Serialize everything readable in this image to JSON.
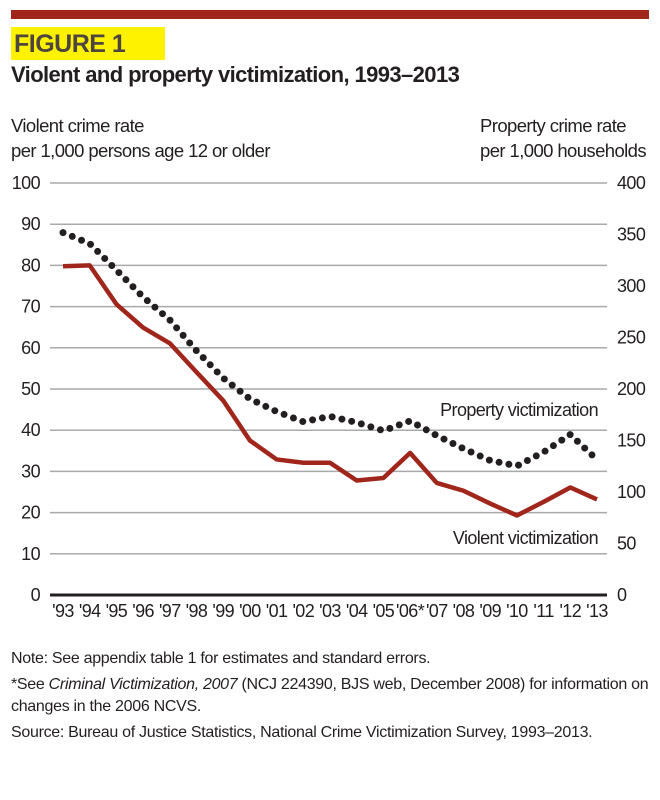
{
  "figure_label": "FIGURE 1",
  "colors": {
    "accent_bar": "#a0261c",
    "highlight": "#fff200",
    "violent_line": "#a0261c",
    "property_line": "#231f20",
    "grid": "#a7a9ac"
  },
  "chart_data": {
    "type": "line",
    "title": "Violent and property victimization, 1993–2013",
    "ylabel_left": [
      "Violent crime rate",
      "per 1,000 persons age 12 or older"
    ],
    "ylabel_right": [
      "Property crime rate",
      "per 1,000 households"
    ],
    "x": [
      "'93",
      "'94",
      "'95",
      "'96",
      "'97",
      "'98",
      "'99",
      "'00",
      "'01",
      "'02",
      "'03",
      "'04",
      "'05",
      "'06*",
      "'07",
      "'08",
      "'09",
      "'10",
      "'11",
      "'12",
      "'13"
    ],
    "ylim_left": [
      0,
      100
    ],
    "ylim_right": [
      0,
      400
    ],
    "yticks_left": [
      "0",
      "10",
      "20",
      "30",
      "40",
      "50",
      "60",
      "70",
      "80",
      "90",
      "100"
    ],
    "yticks_right": [
      "0",
      "50",
      "100",
      "150",
      "200",
      "250",
      "300",
      "350",
      "400"
    ],
    "grid": true,
    "series": [
      {
        "name": "Property victimization",
        "axis": "right",
        "style": "dotted",
        "values": [
          351.8,
          341.2,
          315.5,
          289.3,
          267.0,
          237.1,
          210.6,
          190.4,
          178.1,
          168.2,
          173.4,
          167.5,
          159.5,
          169.0,
          154.8,
          142.1,
          130.6,
          125.3,
          138.7,
          155.8,
          131.4
        ]
      },
      {
        "name": "Violent victimization",
        "axis": "left",
        "style": "solid",
        "values": [
          79.8,
          80.0,
          70.6,
          64.9,
          61.1,
          54.1,
          47.2,
          37.5,
          32.9,
          32.1,
          32.1,
          27.8,
          28.4,
          34.5,
          27.2,
          25.3,
          22.2,
          19.3,
          22.6,
          26.1,
          23.2
        ]
      }
    ]
  },
  "notes": {
    "note": "Note: See appendix table 1 for estimates and standard errors.",
    "footnote_pre": "*See ",
    "footnote_italic": "Criminal Victimization, 2007",
    "footnote_post": " (NCJ 224390, BJS web, December 2008) for information on changes in the 2006 NCVS.",
    "source": "Source: Bureau of Justice Statistics, National Crime Victimization Survey, 1993–2013."
  }
}
